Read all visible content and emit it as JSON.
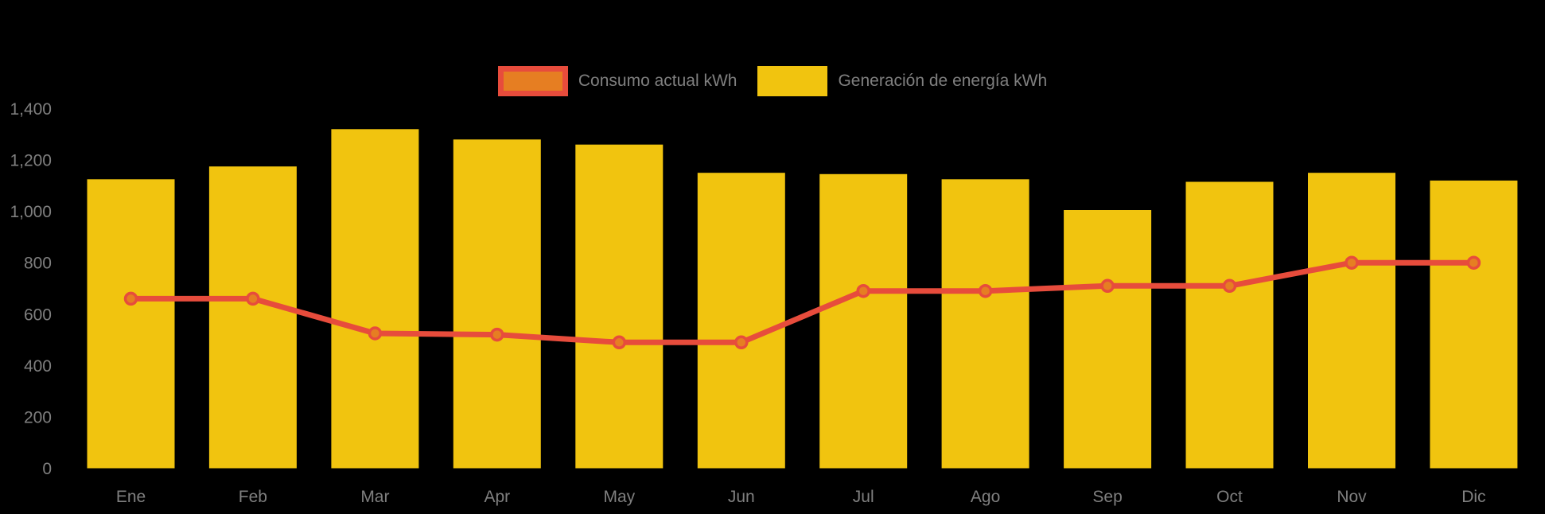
{
  "page": {
    "background_color": "#000000",
    "axis_text_color": "#7F7F7F"
  },
  "legend": {
    "position": "top-center",
    "items": [
      {
        "label": "Consumo actual kWh",
        "series_type": "line",
        "swatch_fill": "#E67E22",
        "swatch_border": "#E74C3C"
      },
      {
        "label": "Generación de energía kWh",
        "series_type": "bar",
        "swatch_fill": "#F1C40F",
        "swatch_border": "#F1C40F"
      }
    ]
  },
  "chart_data": {
    "type": "bar",
    "subtype": "bar-line-combo",
    "title": "",
    "xlabel": "",
    "ylabel": "",
    "categories": [
      "Ene",
      "Feb",
      "Mar",
      "Apr",
      "May",
      "Jun",
      "Jul",
      "Ago",
      "Sep",
      "Oct",
      "Nov",
      "Dic"
    ],
    "series": [
      {
        "name": "Generación de energía kWh",
        "type": "bar",
        "color": "#F1C40F",
        "values": [
          1125,
          1175,
          1320,
          1280,
          1260,
          1150,
          1145,
          1125,
          1005,
          1115,
          1150,
          1120
        ]
      },
      {
        "name": "Consumo actual kWh",
        "type": "line",
        "color": "#E74C3C",
        "marker_fill": "#E67E22",
        "values": [
          660,
          660,
          525,
          520,
          490,
          490,
          690,
          690,
          710,
          710,
          800,
          800
        ]
      }
    ],
    "ylim": [
      0,
      1400
    ],
    "yticks": [
      {
        "value": 0,
        "label": "0"
      },
      {
        "value": 200,
        "label": "200"
      },
      {
        "value": 400,
        "label": "400"
      },
      {
        "value": 600,
        "label": "600"
      },
      {
        "value": 800,
        "label": "800"
      },
      {
        "value": 1000,
        "label": "1,000"
      },
      {
        "value": 1200,
        "label": "1,200"
      },
      {
        "value": 1400,
        "label": "1,400"
      }
    ],
    "grid": false,
    "legend_position": "top-center"
  }
}
